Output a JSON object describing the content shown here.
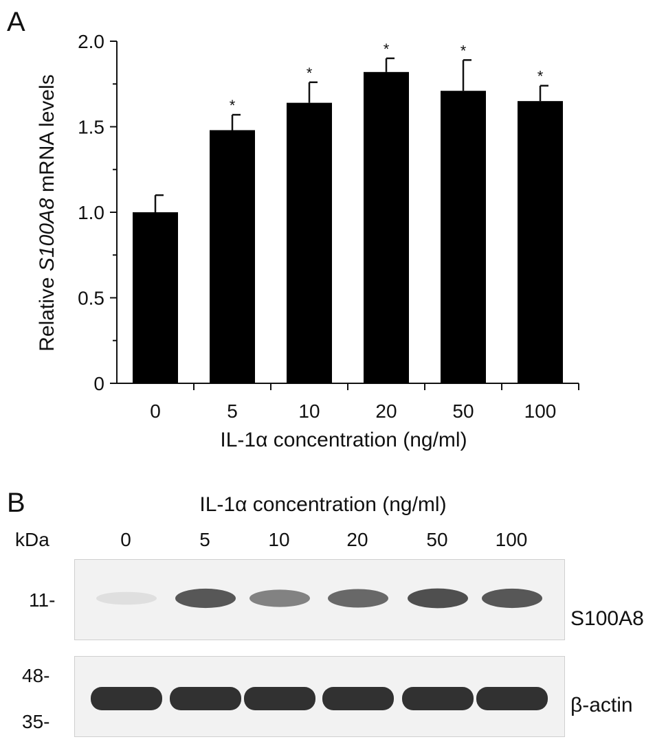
{
  "panel_a_letter": "A",
  "panel_b_letter": "B",
  "chart_data": {
    "type": "bar",
    "categories": [
      "0",
      "5",
      "10",
      "20",
      "50",
      "100"
    ],
    "values": [
      1.0,
      1.48,
      1.64,
      1.82,
      1.71,
      1.65
    ],
    "errors": [
      0.1,
      0.09,
      0.12,
      0.08,
      0.18,
      0.09
    ],
    "significance": [
      "",
      "*",
      "*",
      "*",
      "*",
      "*"
    ],
    "xlabel": "IL-1α concentration (ng/ml)",
    "ylabel_prefix": "Relative ",
    "ylabel_gene": "S100A8",
    "ylabel_suffix": " mRNA levels",
    "ylim": [
      0,
      2.0
    ],
    "yticks": [
      "0",
      "0.5",
      "1.0",
      "1.5",
      "2.0"
    ],
    "bar_color": "#000000",
    "grid": false
  },
  "blot": {
    "title": "IL-1α concentration (ng/ml)",
    "unit_label": "kDa",
    "lanes": [
      "0",
      "5",
      "10",
      "20",
      "50",
      "100"
    ],
    "s100a8_marker": "11-",
    "actin_marker_top": "48-",
    "actin_marker_bottom": "35-",
    "s100a8_label": "S100A8",
    "actin_label": "β-actin",
    "s100a8_intensity": [
      0.05,
      0.85,
      0.6,
      0.75,
      0.9,
      0.85
    ],
    "actin_intensity": [
      1,
      1,
      1,
      1,
      1,
      1
    ]
  }
}
